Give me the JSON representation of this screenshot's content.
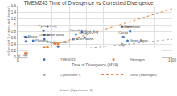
{
  "chart_data": {
    "type": "scatter",
    "title": "TMEM243 Time of Divergence vs Corrected Divergence",
    "x_label": "Time of Divergence (MYA)",
    "y_label": "m (corrected % of amino acid changes)",
    "xlim": [
      0,
      1800
    ],
    "xticks": [
      0,
      200,
      400,
      600,
      800,
      1000,
      1200,
      1400,
      1600,
      1800
    ],
    "ylim": [
      0,
      1.6
    ],
    "yticks": [
      0,
      0.2,
      0.4,
      0.6,
      0.8,
      1,
      1.2,
      1.4,
      1.6
    ],
    "grid": true,
    "legend": "bottom",
    "series": [
      {
        "name": "TMEM243",
        "type": "scatter",
        "color": "#4472c4",
        "marker": "circle",
        "x": [
          90,
          95,
          310,
          300,
          350,
          310,
          180,
          470,
          650,
          680,
          750,
          780,
          1215,
          1230,
          1280,
          1310
        ],
        "values": [
          0.62,
          0.48,
          0.68,
          0.82,
          0.95,
          0.55,
          0.5,
          0.32,
          0.55,
          0.7,
          0.78,
          0.6,
          0.95,
          0.62,
          0.5,
          0.8
        ],
        "labels": [
          "Mouse",
          "Cow",
          "Anole lizard",
          "Python",
          "Frog",
          "Chicken",
          "Platypus",
          "Elephant shark",
          "Acorn Worm",
          "Lancelet",
          "Stink Bug",
          "Octopus",
          "Yeast",
          "Cacao",
          "Green Algae",
          "Sea Anemone"
        ]
      },
      {
        "name": "Fibrinogen",
        "type": "scatter",
        "color": "#ed7d31",
        "marker": "circle",
        "x": [
          90,
          180,
          310,
          350,
          430,
          470
        ],
        "values": [
          0.12,
          0.2,
          0.28,
          0.3,
          0.42,
          0.4
        ]
      },
      {
        "name": "Cytochrome C",
        "type": "scatter",
        "color": "#a5a5a5",
        "marker": "circle",
        "x": [
          90,
          310,
          430,
          680,
          1215,
          1230
        ],
        "values": [
          0.05,
          0.1,
          0.12,
          0.2,
          0.4,
          0.35
        ]
      },
      {
        "name": "Linear (Fibrinogen)",
        "type": "line",
        "color": "#ed7d31",
        "line_style": "dotted",
        "x": [
          0,
          1800
        ],
        "values": [
          0.03,
          1.5
        ]
      },
      {
        "name": "Linear (Cytochrome C)",
        "type": "line",
        "color": "#a5a5a5",
        "line_style": "dotted",
        "x": [
          0,
          1800
        ],
        "values": [
          0.02,
          0.55
        ]
      }
    ]
  }
}
